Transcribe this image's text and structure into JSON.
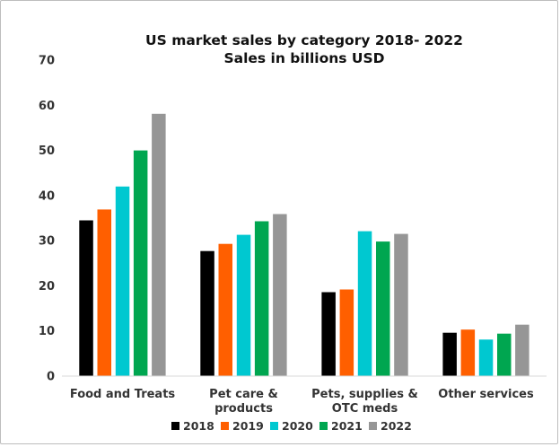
{
  "chart_data": {
    "type": "bar",
    "title_lines": [
      "US market sales by category 2018- 2022",
      "Sales in billions USD"
    ],
    "categories": [
      [
        "Food and Treats"
      ],
      [
        "Pet care &",
        "products"
      ],
      [
        "Pets, supplies &",
        "OTC meds"
      ],
      [
        "Other services"
      ]
    ],
    "series": [
      {
        "name": "2018",
        "color": "#000000",
        "values": [
          34.5,
          27.7,
          18.6,
          9.6
        ]
      },
      {
        "name": "2019",
        "color": "#ff5f00",
        "values": [
          36.9,
          29.3,
          19.2,
          10.3
        ]
      },
      {
        "name": "2020",
        "color": "#00c8d0",
        "values": [
          42.0,
          31.3,
          32.1,
          8.1
        ]
      },
      {
        "name": "2021",
        "color": "#00a650",
        "values": [
          50.0,
          34.3,
          29.8,
          9.4
        ]
      },
      {
        "name": "2022",
        "color": "#969696",
        "values": [
          58.1,
          35.9,
          31.5,
          11.4
        ]
      }
    ],
    "ylim": [
      0,
      70
    ],
    "yticks": [
      0,
      10,
      20,
      30,
      40,
      50,
      60,
      70
    ],
    "grid": false,
    "legend_position": "bottom"
  }
}
